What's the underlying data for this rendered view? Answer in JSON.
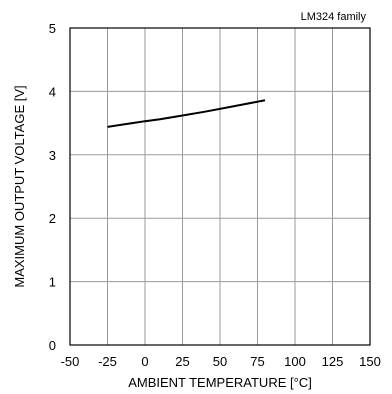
{
  "chart_data": {
    "type": "line",
    "title": "",
    "annotation": "LM324  family",
    "xlabel": "AMBIENT TEMPERATURE [°C]",
    "ylabel": "MAXIMUM OUTPUT VOLTAGE [V]",
    "xlim": [
      -50,
      150
    ],
    "ylim": [
      0,
      5
    ],
    "xticks": [
      -50,
      -25,
      0,
      25,
      50,
      75,
      100,
      125,
      150
    ],
    "yticks": [
      0,
      1,
      2,
      3,
      4,
      5
    ],
    "grid": true,
    "series": [
      {
        "x": [
          -25,
          0,
          10,
          25,
          40,
          60,
          80
        ],
        "y": [
          3.44,
          3.53,
          3.56,
          3.62,
          3.68,
          3.77,
          3.86
        ]
      }
    ]
  }
}
